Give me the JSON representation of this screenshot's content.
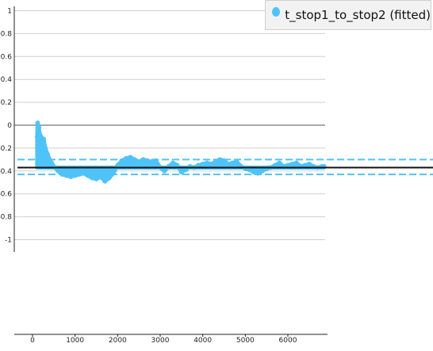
{
  "chart_data": {
    "type": "area",
    "title": "",
    "xlabel": "",
    "ylabel": "",
    "xlim": [
      -400,
      6900
    ],
    "ylim": [
      -1.1,
      1.05
    ],
    "ylim_axis_extent": [
      -1.1,
      1.05
    ],
    "x_ticks": [
      0,
      1000,
      2000,
      3000,
      4000,
      5000,
      6000
    ],
    "y_ticks": [
      1,
      0.8,
      0.6,
      0.4,
      0.2,
      0,
      -0.2,
      -0.4,
      -0.6,
      -0.8,
      -1
    ],
    "y_tick_labels": [
      "1",
      "0.8",
      "0.6",
      "0.4",
      "0.2",
      "0",
      "-0.2",
      "-0.4",
      "-0.6",
      "-0.8",
      "-1"
    ],
    "x_tick_labels": [
      "0",
      "1000",
      "2000",
      "3000",
      "4000",
      "5000",
      "6000"
    ],
    "grid": true,
    "legend_position": "top-right",
    "series": [
      {
        "name": "t_stop1_to_stop2 (fitted)",
        "color": "#4fc3f7",
        "baseline": -0.37,
        "x": [
          110,
          120,
          130,
          150,
          170,
          200,
          230,
          260,
          300,
          350,
          400,
          450,
          500,
          600,
          700,
          800,
          900,
          1000,
          1100,
          1200,
          1300,
          1400,
          1500,
          1600,
          1700,
          1800,
          1900,
          2000,
          2100,
          2200,
          2300,
          2400,
          2500,
          2600,
          2700,
          2800,
          2900,
          3000,
          3100,
          3200,
          3300,
          3400,
          3500,
          3600,
          3700,
          3800,
          3900,
          4000,
          4100,
          4200,
          4300,
          4400,
          4500,
          4600,
          4700,
          4800,
          4900,
          5000,
          5100,
          5200,
          5300,
          5400,
          5500,
          5600,
          5700,
          5800,
          5900,
          6000,
          6100,
          6200,
          6300,
          6400,
          6500,
          6600,
          6700,
          6800,
          6850
        ],
        "y": [
          -0.1,
          0.02,
          -0.05,
          -0.02,
          -0.08,
          -0.1,
          -0.15,
          -0.12,
          -0.2,
          -0.25,
          -0.3,
          -0.33,
          -0.36,
          -0.4,
          -0.43,
          -0.44,
          -0.45,
          -0.44,
          -0.43,
          -0.42,
          -0.44,
          -0.46,
          -0.47,
          -0.45,
          -0.49,
          -0.46,
          -0.42,
          -0.35,
          -0.31,
          -0.29,
          -0.28,
          -0.3,
          -0.32,
          -0.3,
          -0.31,
          -0.32,
          -0.31,
          -0.37,
          -0.4,
          -0.36,
          -0.33,
          -0.35,
          -0.41,
          -0.39,
          -0.36,
          -0.37,
          -0.35,
          -0.34,
          -0.33,
          -0.34,
          -0.32,
          -0.3,
          -0.31,
          -0.34,
          -0.33,
          -0.32,
          -0.36,
          -0.38,
          -0.39,
          -0.41,
          -0.42,
          -0.4,
          -0.38,
          -0.37,
          -0.35,
          -0.33,
          -0.36,
          -0.35,
          -0.34,
          -0.33,
          -0.36,
          -0.35,
          -0.34,
          -0.36,
          -0.37,
          -0.36,
          -0.36
        ]
      }
    ],
    "reference_lines": [
      {
        "type": "solid",
        "color": "#111111",
        "y": -0.37
      },
      {
        "type": "dashed",
        "color": "#4fc3f7",
        "y": -0.3
      },
      {
        "type": "dashed",
        "color": "#4fc3f7",
        "y": -0.43
      }
    ]
  }
}
